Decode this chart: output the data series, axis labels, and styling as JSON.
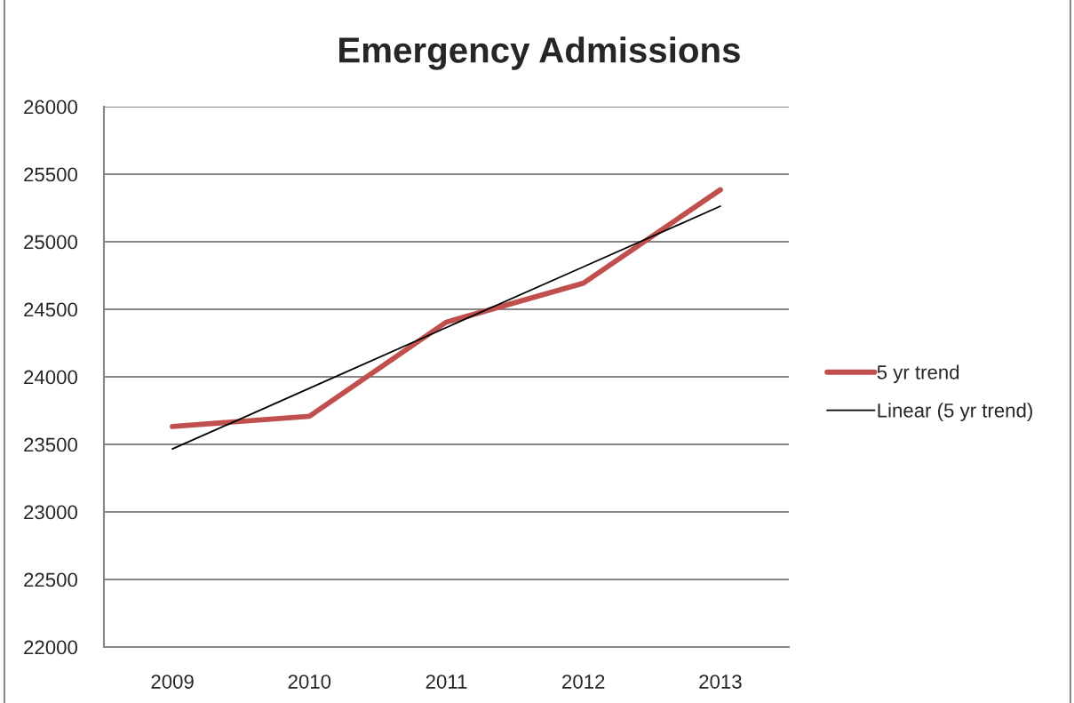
{
  "chart_data": {
    "type": "line",
    "title": "Emergency Admissions",
    "categories": [
      "2009",
      "2010",
      "2011",
      "2012",
      "2013"
    ],
    "series": [
      {
        "name": "5 yr trend",
        "color": "#c0504d",
        "values": [
          23632,
          23708,
          24405,
          24693,
          25385
        ]
      },
      {
        "name": "Linear (5 yr trend)",
        "type": "line",
        "color": "#000000",
        "values": [
          23466,
          23915,
          24365,
          24814,
          25263
        ]
      }
    ],
    "ylim": [
      22000,
      26000
    ],
    "yticks": [
      22000,
      22500,
      23000,
      23500,
      24000,
      24500,
      25000,
      25500,
      26000
    ],
    "grid": "y",
    "legend": "right",
    "line_style": "solid"
  }
}
